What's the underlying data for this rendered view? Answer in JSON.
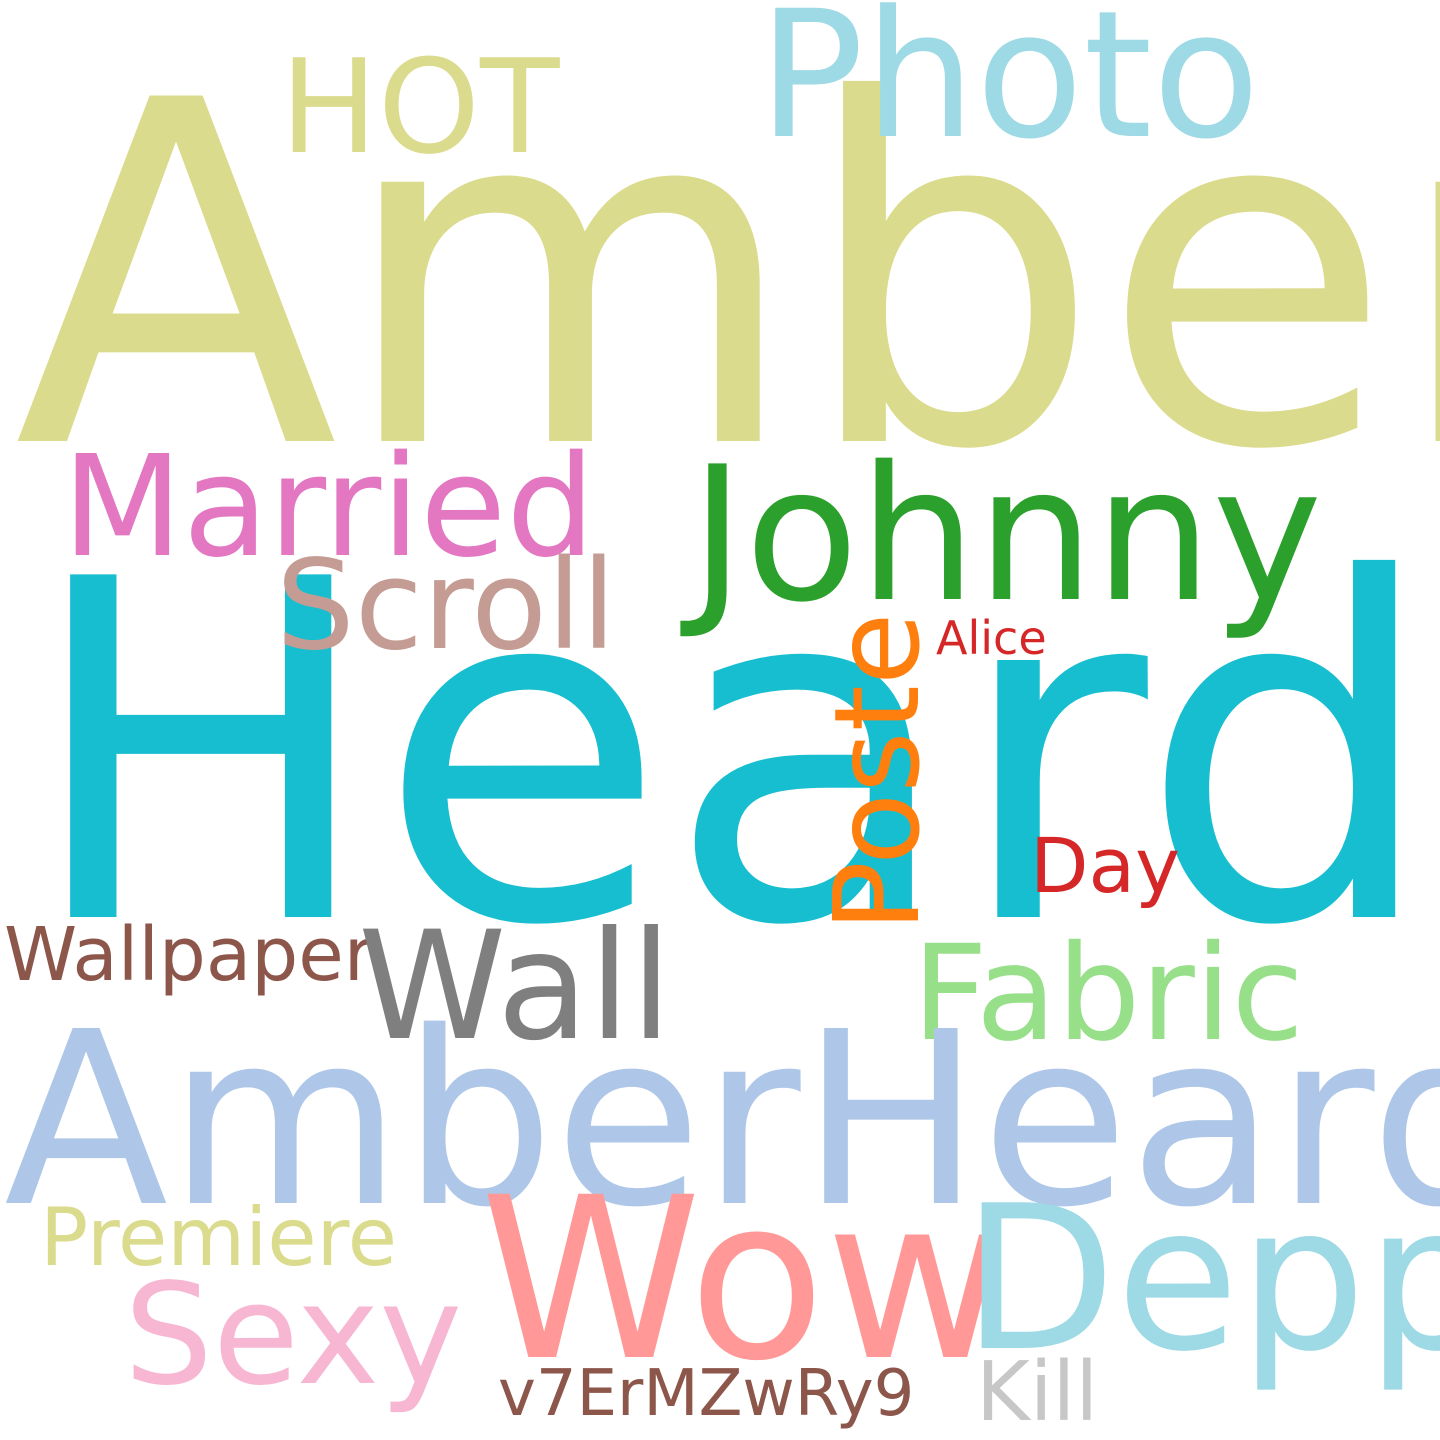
{
  "cloud": {
    "words": {
      "amber": {
        "text": "Amber",
        "color": "#dbdb8d"
      },
      "heard": {
        "text": "Heard",
        "color": "#17becf"
      },
      "photo": {
        "text": "Photo",
        "color": "#9edae5"
      },
      "hot": {
        "text": "HOT",
        "color": "#dbdb8d"
      },
      "married": {
        "text": "Married",
        "color": "#e377c2"
      },
      "johnny": {
        "text": "Johnny",
        "color": "#2ca02c"
      },
      "scroll": {
        "text": "Scroll",
        "color": "#c49c94"
      },
      "alice": {
        "text": "Alice",
        "color": "#d62728"
      },
      "poster": {
        "text": "Poste",
        "color": "#ff7f0e"
      },
      "day": {
        "text": "Day",
        "color": "#d62728"
      },
      "wallpaper": {
        "text": "Wallpaper",
        "color": "#8c564b"
      },
      "wall": {
        "text": "Wall",
        "color": "#7f7f7f"
      },
      "fabric": {
        "text": "Fabric",
        "color": "#98df8a"
      },
      "amberheard": {
        "text": "AmberHeard",
        "color": "#aec7e8"
      },
      "premiere": {
        "text": "Premiere",
        "color": "#dbdb8d"
      },
      "wow": {
        "text": "Wow",
        "color": "#ff9896"
      },
      "depp": {
        "text": "Depp",
        "color": "#9edae5"
      },
      "sexy": {
        "text": "Sexy",
        "color": "#f7b6d2"
      },
      "v7": {
        "text": "v7ErMZwRy9",
        "color": "#8c564b"
      },
      "kill": {
        "text": "Kill",
        "color": "#c7c7c7"
      }
    }
  }
}
